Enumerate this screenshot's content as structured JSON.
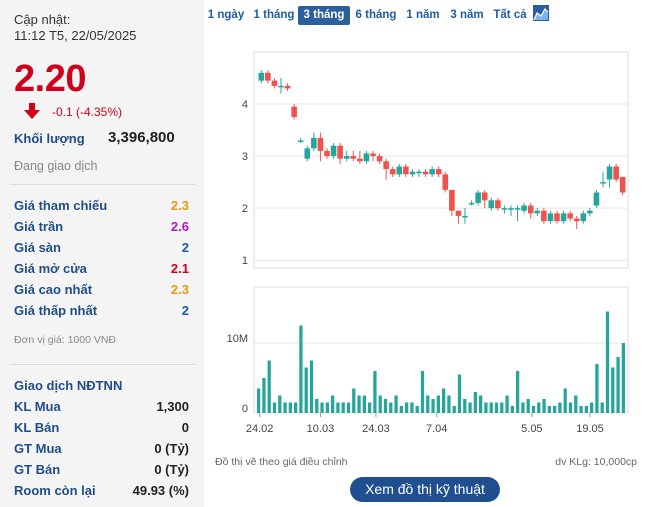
{
  "info": {
    "updated_label": "Cập nhật:",
    "updated_time": "11:12 T5, 22/05/2025",
    "price": "2.20",
    "change": "-0.1 (-4.35%)",
    "volume_label": "Khối lượng",
    "volume_value": "3,396,800",
    "status": "Đang giao dịch"
  },
  "price_rows": [
    {
      "label": "Giá tham chiếu",
      "value": "2.3",
      "color": "#e39a0f"
    },
    {
      "label": "Giá trần",
      "value": "2.6",
      "color": "#b513c9"
    },
    {
      "label": "Giá sàn",
      "value": "2",
      "color": "#1f5aa6"
    },
    {
      "label": "Giá mở cửa",
      "value": "2.1",
      "color": "#d0021b"
    },
    {
      "label": "Giá cao nhất",
      "value": "2.3",
      "color": "#e39a0f"
    },
    {
      "label": "Giá thấp nhất",
      "value": "2",
      "color": "#1f5aa6"
    }
  ],
  "unit_note": "Đơn vị giá: 1000 VNĐ",
  "foreign": {
    "title": "Giao dịch NĐTNN",
    "rows": [
      {
        "label": "KL Mua",
        "value": "1,300"
      },
      {
        "label": "KL Bán",
        "value": "0"
      },
      {
        "label": "GT Mua",
        "value": "0 (Tỷ)"
      },
      {
        "label": "GT Bán",
        "value": "0 (Tỷ)"
      },
      {
        "label": "Room còn lại",
        "value": "49.93 (%)"
      }
    ]
  },
  "range_tabs": [
    {
      "label": "1 ngày",
      "active": false
    },
    {
      "label": "1 tháng",
      "active": false
    },
    {
      "label": "3 tháng",
      "active": true
    },
    {
      "label": "6 tháng",
      "active": false
    },
    {
      "label": "1 năm",
      "active": false
    },
    {
      "label": "3 năm",
      "active": false
    },
    {
      "label": "Tất cả",
      "active": false
    }
  ],
  "chart_type_icon": "area-chart-icon",
  "colors": {
    "up": "#26a69a",
    "down": "#ef5350",
    "volume": "#26a69a",
    "price": "#d0021b"
  },
  "chart_data": [
    {
      "type": "candlestick",
      "yticks": [
        "1",
        "2",
        "3",
        "4"
      ],
      "ylim": [
        0.85,
        5.0
      ],
      "candles": [
        {
          "o": 4.45,
          "c": 4.6,
          "h": 4.65,
          "l": 4.4
        },
        {
          "o": 4.6,
          "c": 4.45,
          "h": 4.65,
          "l": 4.4
        },
        {
          "o": 4.45,
          "c": 4.35,
          "h": 4.5,
          "l": 4.3
        },
        {
          "o": 4.35,
          "c": 4.35,
          "h": 4.5,
          "l": 4.2
        },
        {
          "o": 4.35,
          "c": 4.3,
          "h": 4.4,
          "l": 4.25
        },
        {
          "o": 3.95,
          "c": 3.75,
          "h": 4.0,
          "l": 3.7
        },
        {
          "o": 3.3,
          "c": 3.3,
          "h": 3.35,
          "l": 3.25
        },
        {
          "o": 2.95,
          "c": 3.15,
          "h": 3.2,
          "l": 2.9
        },
        {
          "o": 3.15,
          "c": 3.35,
          "h": 3.45,
          "l": 3.1
        },
        {
          "o": 3.35,
          "c": 3.1,
          "h": 3.45,
          "l": 2.9
        },
        {
          "o": 3.1,
          "c": 3.0,
          "h": 3.15,
          "l": 2.95
        },
        {
          "o": 3.0,
          "c": 3.2,
          "h": 3.25,
          "l": 2.95
        },
        {
          "o": 3.2,
          "c": 2.95,
          "h": 3.25,
          "l": 2.85
        },
        {
          "o": 2.95,
          "c": 3.0,
          "h": 3.1,
          "l": 2.9
        },
        {
          "o": 3.0,
          "c": 2.95,
          "h": 3.1,
          "l": 2.9
        },
        {
          "o": 2.95,
          "c": 2.9,
          "h": 3.1,
          "l": 2.85
        },
        {
          "o": 2.9,
          "c": 3.05,
          "h": 3.1,
          "l": 2.85
        },
        {
          "o": 3.05,
          "c": 3.0,
          "h": 3.1,
          "l": 2.9
        },
        {
          "o": 3.0,
          "c": 2.9,
          "h": 3.05,
          "l": 2.85
        },
        {
          "o": 2.9,
          "c": 2.75,
          "h": 2.95,
          "l": 2.55
        },
        {
          "o": 2.75,
          "c": 2.65,
          "h": 2.8,
          "l": 2.6
        },
        {
          "o": 2.65,
          "c": 2.8,
          "h": 2.85,
          "l": 2.6
        },
        {
          "o": 2.8,
          "c": 2.65,
          "h": 2.85,
          "l": 2.6
        },
        {
          "o": 2.65,
          "c": 2.7,
          "h": 2.75,
          "l": 2.6
        },
        {
          "o": 2.7,
          "c": 2.7,
          "h": 2.75,
          "l": 2.6
        },
        {
          "o": 2.7,
          "c": 2.65,
          "h": 2.75,
          "l": 2.6
        },
        {
          "o": 2.65,
          "c": 2.75,
          "h": 2.8,
          "l": 2.6
        },
        {
          "o": 2.75,
          "c": 2.65,
          "h": 2.8,
          "l": 2.6
        },
        {
          "o": 2.65,
          "c": 2.35,
          "h": 2.7,
          "l": 2.3
        },
        {
          "o": 2.35,
          "c": 1.95,
          "h": 2.35,
          "l": 1.85
        },
        {
          "o": 1.95,
          "c": 1.85,
          "h": 1.95,
          "l": 1.7
        },
        {
          "o": 1.85,
          "c": 1.85,
          "h": 2.0,
          "l": 1.7
        },
        {
          "o": 2.1,
          "c": 2.1,
          "h": 2.15,
          "l": 2.05
        },
        {
          "o": 2.1,
          "c": 2.3,
          "h": 2.35,
          "l": 2.05
        },
        {
          "o": 2.3,
          "c": 2.15,
          "h": 2.35,
          "l": 2.0
        },
        {
          "o": 2.0,
          "c": 2.15,
          "h": 2.2,
          "l": 1.95
        },
        {
          "o": 2.15,
          "c": 2.0,
          "h": 2.2,
          "l": 1.95
        },
        {
          "o": 2.0,
          "c": 2.0,
          "h": 2.05,
          "l": 1.9
        },
        {
          "o": 2.0,
          "c": 2.0,
          "h": 2.05,
          "l": 1.85
        },
        {
          "o": 2.0,
          "c": 2.0,
          "h": 2.05,
          "l": 1.75
        },
        {
          "o": 1.95,
          "c": 2.05,
          "h": 2.1,
          "l": 1.9
        },
        {
          "o": 2.05,
          "c": 1.9,
          "h": 2.1,
          "l": 1.8
        },
        {
          "o": 1.9,
          "c": 1.95,
          "h": 2.0,
          "l": 1.85
        },
        {
          "o": 1.95,
          "c": 1.75,
          "h": 2.0,
          "l": 1.7
        },
        {
          "o": 1.75,
          "c": 1.9,
          "h": 1.95,
          "l": 1.7
        },
        {
          "o": 1.9,
          "c": 1.75,
          "h": 1.95,
          "l": 1.7
        },
        {
          "o": 1.75,
          "c": 1.9,
          "h": 1.95,
          "l": 1.7
        },
        {
          "o": 1.9,
          "c": 1.8,
          "h": 1.95,
          "l": 1.75
        },
        {
          "o": 1.8,
          "c": 1.75,
          "h": 1.85,
          "l": 1.6
        },
        {
          "o": 1.75,
          "c": 1.9,
          "h": 1.95,
          "l": 1.7
        },
        {
          "o": 1.9,
          "c": 1.95,
          "h": 2.0,
          "l": 1.85
        },
        {
          "o": 2.05,
          "c": 2.3,
          "h": 2.35,
          "l": 2.0
        },
        {
          "o": 2.5,
          "c": 2.5,
          "h": 2.7,
          "l": 2.4
        },
        {
          "o": 2.55,
          "c": 2.8,
          "h": 2.85,
          "l": 2.4
        },
        {
          "o": 2.8,
          "c": 2.55,
          "h": 2.85,
          "l": 2.5
        },
        {
          "o": 2.6,
          "c": 2.3,
          "h": 2.6,
          "l": 2.25
        }
      ]
    },
    {
      "type": "bar",
      "ylabel_tick": [
        "0",
        "10M"
      ],
      "ylim": [
        0,
        18
      ],
      "x_tick_labels": [
        "24.02",
        "10.03",
        "24.03",
        "7.04",
        "5.05",
        "19.05"
      ],
      "values": [
        3.5,
        5.0,
        7.5,
        1.5,
        2.5,
        1.5,
        1.5,
        1.5,
        12.5,
        6.5,
        7.5,
        2.0,
        1.5,
        1.5,
        2.5,
        1.5,
        1.5,
        1.5,
        3.5,
        2.5,
        2.5,
        1.5,
        6.0,
        2.5,
        2.0,
        1.5,
        2.5,
        1.0,
        1.5,
        1.5,
        1.0,
        6.0,
        2.5,
        2.0,
        2.5,
        3.5,
        2.5,
        1.0,
        5.5,
        2.0,
        1.5,
        3.0,
        2.5,
        1.5,
        1.5,
        1.5,
        1.5,
        2.5,
        1.0,
        6.0,
        1.5,
        2.0,
        1.0,
        1.5,
        2.0,
        1.0,
        1.0,
        1.5,
        3.5,
        1.5,
        2.5,
        1.0,
        1.0,
        1.5,
        7.0,
        1.5,
        14.5,
        6.5,
        8.0,
        10.0
      ]
    }
  ],
  "chart_note": "Đồ thị vẽ theo giá điều chỉnh",
  "volume_unit": "dv KLg: 10,000cp",
  "technical_button": "Xem đồ thị kỹ thuật"
}
